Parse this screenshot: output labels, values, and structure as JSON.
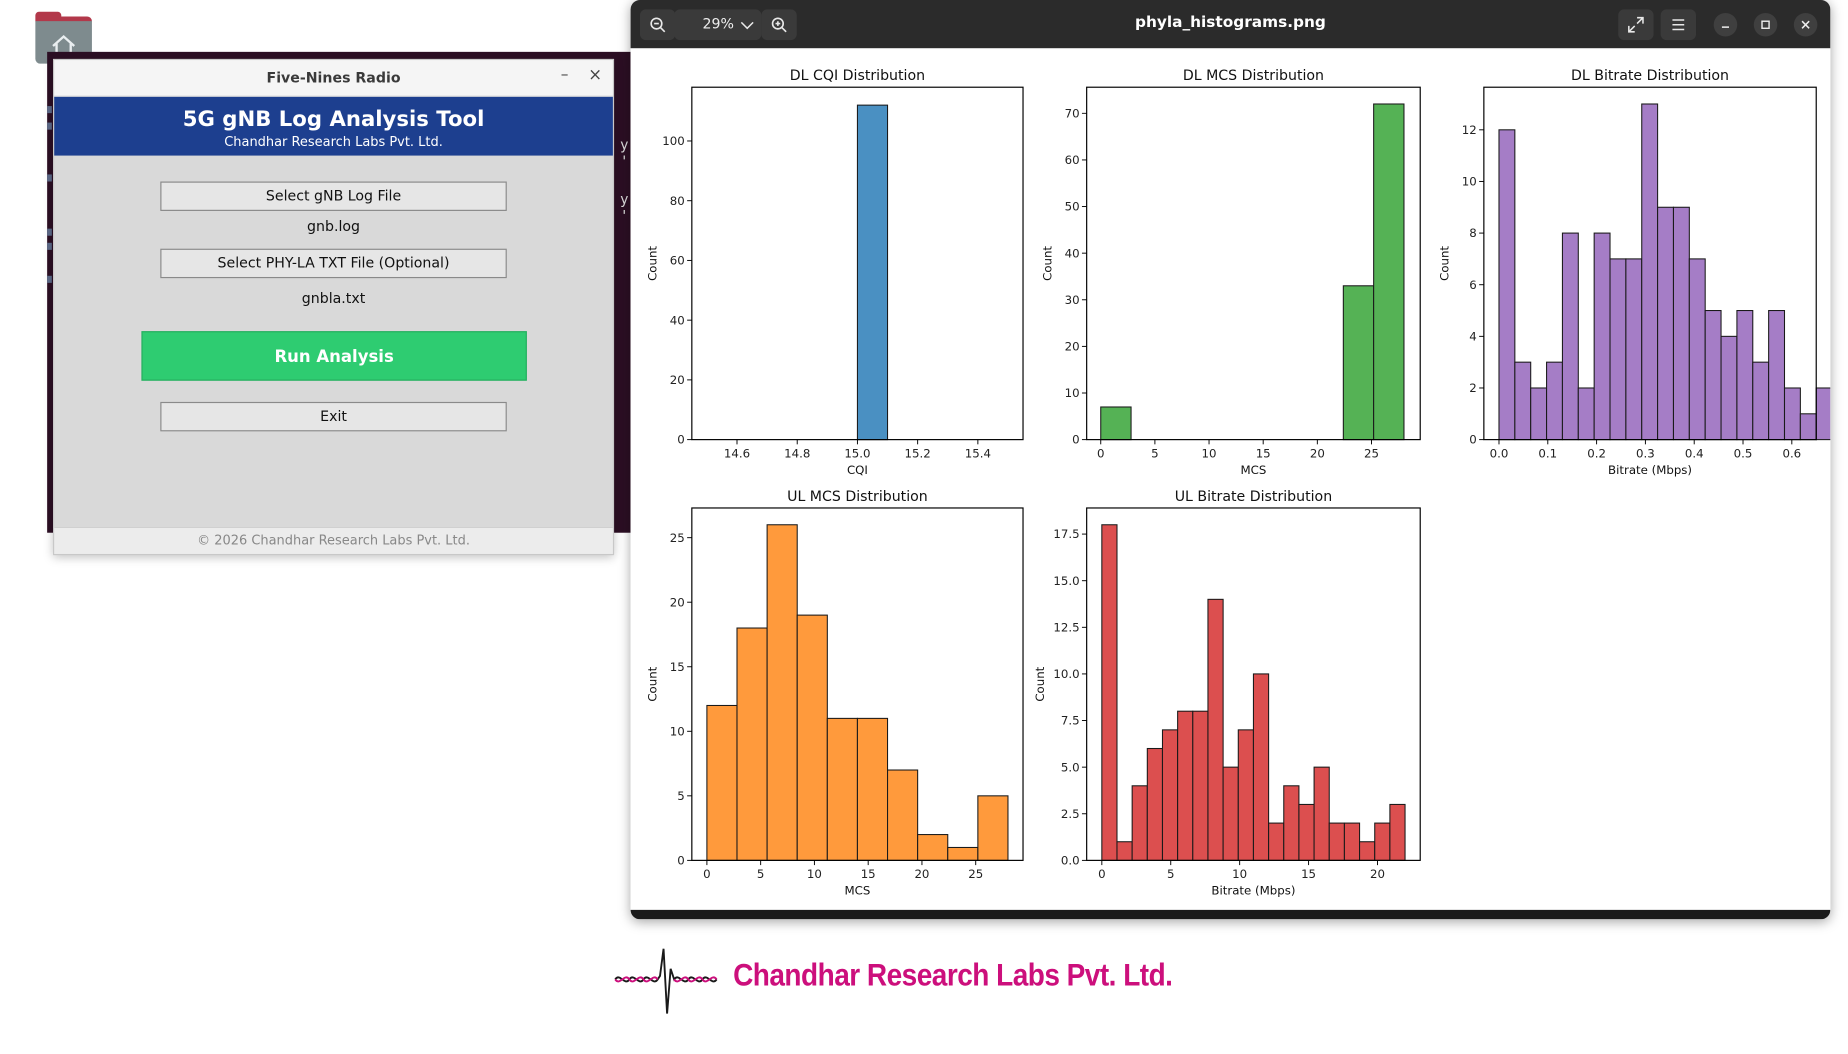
{
  "app": {
    "title": "Five-Nines Radio",
    "minimize": "–",
    "close": "×",
    "heading": "5G gNB Log Analysis Tool",
    "subheading": "Chandhar Research Labs Pvt. Ltd.",
    "select_log_label": "Select gNB Log File",
    "log_file": "gnb.log",
    "select_phyla_label": "Select PHY-LA TXT File (Optional)",
    "phyla_file": "gnbla.txt",
    "run_label": "Run Analysis",
    "exit_label": "Exit",
    "footer": "© 2026 Chandhar Research Labs Pvt. Ltd.",
    "accent_color": "#2ecc71",
    "banner_color": "#1d3f8f"
  },
  "terminal": {
    "fragment_1": "y '",
    "fragment_2": "y '"
  },
  "viewer": {
    "zoom": "29%",
    "filename": "phyla_histograms.png",
    "icons": [
      "zoom-out-icon",
      "chevron-down-icon",
      "zoom-in-icon",
      "fullscreen-icon",
      "menu-icon",
      "minimize-icon",
      "maximize-icon",
      "close-icon"
    ]
  },
  "logo": {
    "text": "Chandhar Research Labs Pvt. Ltd.",
    "color": "#cc0f7c"
  },
  "chart_data": [
    {
      "type": "bar",
      "title": "DL CQI Distribution",
      "xlabel": "CQI",
      "ylabel": "Count",
      "color": "#4a90c2",
      "xlim": [
        14.45,
        15.55
      ],
      "ylim": [
        0,
        118
      ],
      "xticks": [
        14.6,
        14.8,
        15.0,
        15.2,
        15.4
      ],
      "xtick_labels": [
        "14.6",
        "14.8",
        "15.0",
        "15.2",
        "15.4"
      ],
      "yticks": [
        0,
        20,
        40,
        60,
        80,
        100
      ],
      "ytick_labels": [
        "0",
        "20",
        "40",
        "60",
        "80",
        "100"
      ],
      "bins": [
        [
          15.0,
          15.1,
          112
        ]
      ]
    },
    {
      "type": "bar",
      "title": "DL MCS Distribution",
      "xlabel": "MCS",
      "ylabel": "Count",
      "color": "#55b255",
      "xlim": [
        -1.3,
        29.5
      ],
      "ylim": [
        0,
        75.6
      ],
      "xticks": [
        0,
        5,
        10,
        15,
        20,
        25
      ],
      "xtick_labels": [
        "0",
        "5",
        "10",
        "15",
        "20",
        "25"
      ],
      "yticks": [
        0,
        10,
        20,
        30,
        40,
        50,
        60,
        70
      ],
      "ytick_labels": [
        "0",
        "10",
        "20",
        "30",
        "40",
        "50",
        "60",
        "70"
      ],
      "bins": [
        [
          0,
          2.8,
          7
        ],
        [
          22.4,
          25.2,
          33
        ],
        [
          25.2,
          28,
          72
        ]
      ]
    },
    {
      "type": "bar",
      "title": "DL Bitrate Distribution",
      "xlabel": "Bitrate (Mbps)",
      "ylabel": "Count",
      "color": "#a57dc6",
      "xlim": [
        -0.031,
        0.65
      ],
      "ylim": [
        0,
        13.65
      ],
      "xticks": [
        0.0,
        0.1,
        0.2,
        0.3,
        0.4,
        0.5,
        0.6
      ],
      "xtick_labels": [
        "0.0",
        "0.1",
        "0.2",
        "0.3",
        "0.4",
        "0.5",
        "0.6"
      ],
      "yticks": [
        0,
        2,
        4,
        6,
        8,
        10,
        12
      ],
      "ytick_labels": [
        "0",
        "2",
        "4",
        "6",
        "8",
        "10",
        "12"
      ],
      "bin_start": 0.0,
      "bin_width": 0.0325,
      "counts": [
        12,
        3,
        2,
        3,
        8,
        2,
        8,
        7,
        7,
        13,
        9,
        9,
        7,
        5,
        4,
        5,
        3,
        5,
        2,
        1,
        2
      ]
    },
    {
      "type": "bar",
      "title": "UL MCS Distribution",
      "xlabel": "MCS",
      "ylabel": "Count",
      "color": "#ff9a3c",
      "xlim": [
        -1.4,
        29.4
      ],
      "ylim": [
        0,
        27.3
      ],
      "xticks": [
        0,
        5,
        10,
        15,
        20,
        25
      ],
      "xtick_labels": [
        "0",
        "5",
        "10",
        "15",
        "20",
        "25"
      ],
      "yticks": [
        0,
        5,
        10,
        15,
        20,
        25
      ],
      "ytick_labels": [
        "0",
        "5",
        "10",
        "15",
        "20",
        "25"
      ],
      "bin_start": 0,
      "bin_width": 2.8,
      "counts": [
        12,
        18,
        26,
        19,
        11,
        11,
        7,
        2,
        1,
        5
      ]
    },
    {
      "type": "bar",
      "title": "UL Bitrate Distribution",
      "xlabel": "Bitrate (Mbps)",
      "ylabel": "Count",
      "color": "#dc4f4f",
      "xlim": [
        -1.1,
        23.1
      ],
      "ylim": [
        0,
        18.9
      ],
      "xticks": [
        0,
        5,
        10,
        15,
        20
      ],
      "xtick_labels": [
        "0",
        "5",
        "10",
        "15",
        "20"
      ],
      "yticks": [
        0,
        2.5,
        5,
        7.5,
        10,
        12.5,
        15,
        17.5
      ],
      "ytick_labels": [
        "0.0",
        "2.5",
        "5.0",
        "7.5",
        "10.0",
        "12.5",
        "15.0",
        "17.5"
      ],
      "bin_start": 0,
      "bin_width": 1.1,
      "counts": [
        18,
        1,
        4,
        6,
        7,
        8,
        8,
        14,
        5,
        7,
        10,
        2,
        4,
        3,
        5,
        2,
        2,
        1,
        2,
        3
      ]
    }
  ]
}
